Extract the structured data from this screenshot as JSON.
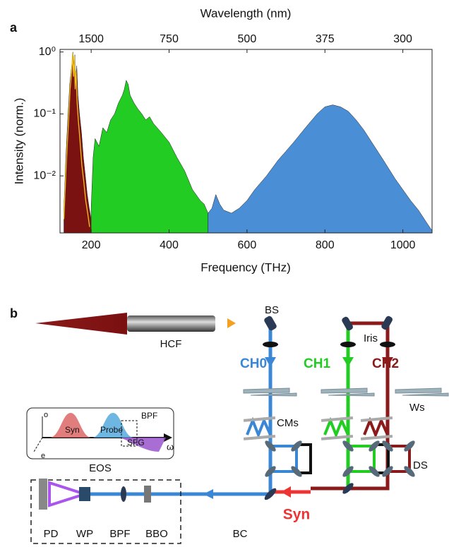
{
  "chart_data": {
    "type": "area",
    "panel": "a",
    "xlabel": "Frequency (THz)",
    "ylabel": "Intensity (norm.)",
    "x2label": "Wavelength (nm)",
    "xlim": [
      120,
      1075
    ],
    "ylim": [
      0.0012,
      1.1
    ],
    "yscale": "log",
    "xticks": [
      200,
      400,
      600,
      800,
      1000
    ],
    "x2ticks": [
      {
        "value": 200,
        "label": "1500"
      },
      {
        "value": 400,
        "label": "750"
      },
      {
        "value": 600,
        "label": "500"
      },
      {
        "value": 800,
        "label": "375"
      },
      {
        "value": 1000,
        "label": "300"
      }
    ],
    "yticks": [
      {
        "value": 1,
        "label": "10⁰"
      },
      {
        "value": 0.1,
        "label": "10⁻¹"
      },
      {
        "value": 0.01,
        "label": "10⁻²"
      }
    ],
    "series": [
      {
        "color": "#7a1212",
        "style": "area",
        "x": [
          130,
          135,
          140,
          145,
          150,
          153,
          156,
          158,
          160,
          163,
          166,
          170,
          175,
          180,
          185,
          190,
          195,
          200
        ],
        "values": [
          0.003,
          0.02,
          0.08,
          0.3,
          0.6,
          1.0,
          0.5,
          0.9,
          0.3,
          0.6,
          0.2,
          0.1,
          0.05,
          0.02,
          0.01,
          0.005,
          0.003,
          0.002
        ]
      },
      {
        "color": "#22cc22",
        "style": "area",
        "x": [
          200,
          205,
          210,
          220,
          230,
          240,
          250,
          260,
          270,
          280,
          285,
          290,
          295,
          300,
          310,
          320,
          330,
          340,
          350,
          360,
          380,
          400,
          420,
          440,
          460,
          480,
          490,
          500
        ],
        "values": [
          0.003,
          0.02,
          0.04,
          0.03,
          0.06,
          0.05,
          0.08,
          0.1,
          0.15,
          0.2,
          0.25,
          0.35,
          0.3,
          0.2,
          0.15,
          0.12,
          0.1,
          0.08,
          0.09,
          0.07,
          0.05,
          0.035,
          0.02,
          0.012,
          0.006,
          0.004,
          0.0035,
          0.0025
        ]
      },
      {
        "color": "#4a8fd6",
        "style": "area",
        "x": [
          500,
          510,
          520,
          530,
          540,
          560,
          580,
          600,
          620,
          650,
          680,
          700,
          720,
          750,
          780,
          800,
          820,
          840,
          860,
          880,
          900,
          920,
          950,
          980,
          1000,
          1020,
          1040,
          1060,
          1075
        ],
        "values": [
          0.0025,
          0.003,
          0.005,
          0.0035,
          0.0028,
          0.0025,
          0.003,
          0.004,
          0.006,
          0.01,
          0.018,
          0.025,
          0.035,
          0.06,
          0.1,
          0.13,
          0.14,
          0.13,
          0.11,
          0.08,
          0.055,
          0.035,
          0.018,
          0.009,
          0.006,
          0.004,
          0.0028,
          0.0018,
          0.0013
        ]
      },
      {
        "color": "#f2c21b",
        "style": "line",
        "x": [
          130,
          136,
          141,
          146,
          150,
          152,
          155,
          157,
          159,
          161,
          164,
          167,
          171,
          176,
          181,
          186,
          191,
          196
        ],
        "values": [
          0.002,
          0.015,
          0.06,
          0.25,
          0.5,
          0.95,
          0.4,
          0.85,
          0.25,
          0.5,
          0.15,
          0.08,
          0.04,
          0.015,
          0.008,
          0.004,
          0.0025,
          0.0015
        ]
      }
    ]
  },
  "diagram": {
    "panel": "b",
    "hcf": "HCF",
    "bs": "BS",
    "iris": "Iris",
    "ch0": "CH0",
    "ch1": "CH1",
    "ch2": "CH2",
    "ws": "Ws",
    "cms": "CMs",
    "ds": "DS",
    "syn": "Syn",
    "bc": "BC",
    "eos_inset": {
      "o": "o",
      "e": "e",
      "syn": "Syn",
      "probe": "Probe",
      "bpf": "BPF",
      "sfg": "SFG",
      "omega": "ω",
      "title": "EOS"
    },
    "detection": {
      "pd": "PD",
      "wp": "WP",
      "bpf": "BPF",
      "bbo": "BBO"
    }
  }
}
